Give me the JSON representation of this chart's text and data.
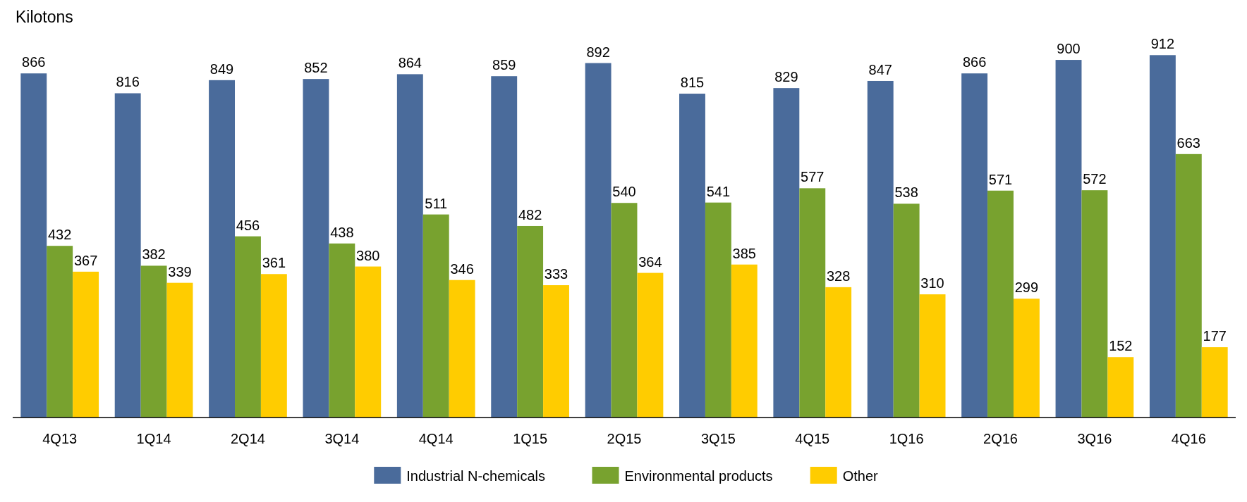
{
  "chart_data": {
    "type": "bar",
    "ylabel": "Kilotons",
    "categories": [
      "4Q13",
      "1Q14",
      "2Q14",
      "3Q14",
      "4Q14",
      "1Q15",
      "2Q15",
      "3Q15",
      "4Q15",
      "1Q16",
      "2Q16",
      "3Q16",
      "4Q16"
    ],
    "series": [
      {
        "name": "Industrial N-chemicals",
        "color": "#4a6b9b",
        "values": [
          866,
          816,
          849,
          852,
          864,
          859,
          892,
          815,
          829,
          847,
          866,
          900,
          912
        ]
      },
      {
        "name": "Environmental products",
        "color": "#78a22f",
        "values": [
          432,
          382,
          456,
          438,
          511,
          482,
          540,
          541,
          577,
          538,
          571,
          572,
          663
        ]
      },
      {
        "name": "Other",
        "color": "#ffcc00",
        "values": [
          367,
          339,
          361,
          380,
          346,
          333,
          364,
          385,
          328,
          310,
          299,
          152,
          177
        ]
      }
    ],
    "data_labels": true,
    "legend": "bottom",
    "grid": false
  }
}
